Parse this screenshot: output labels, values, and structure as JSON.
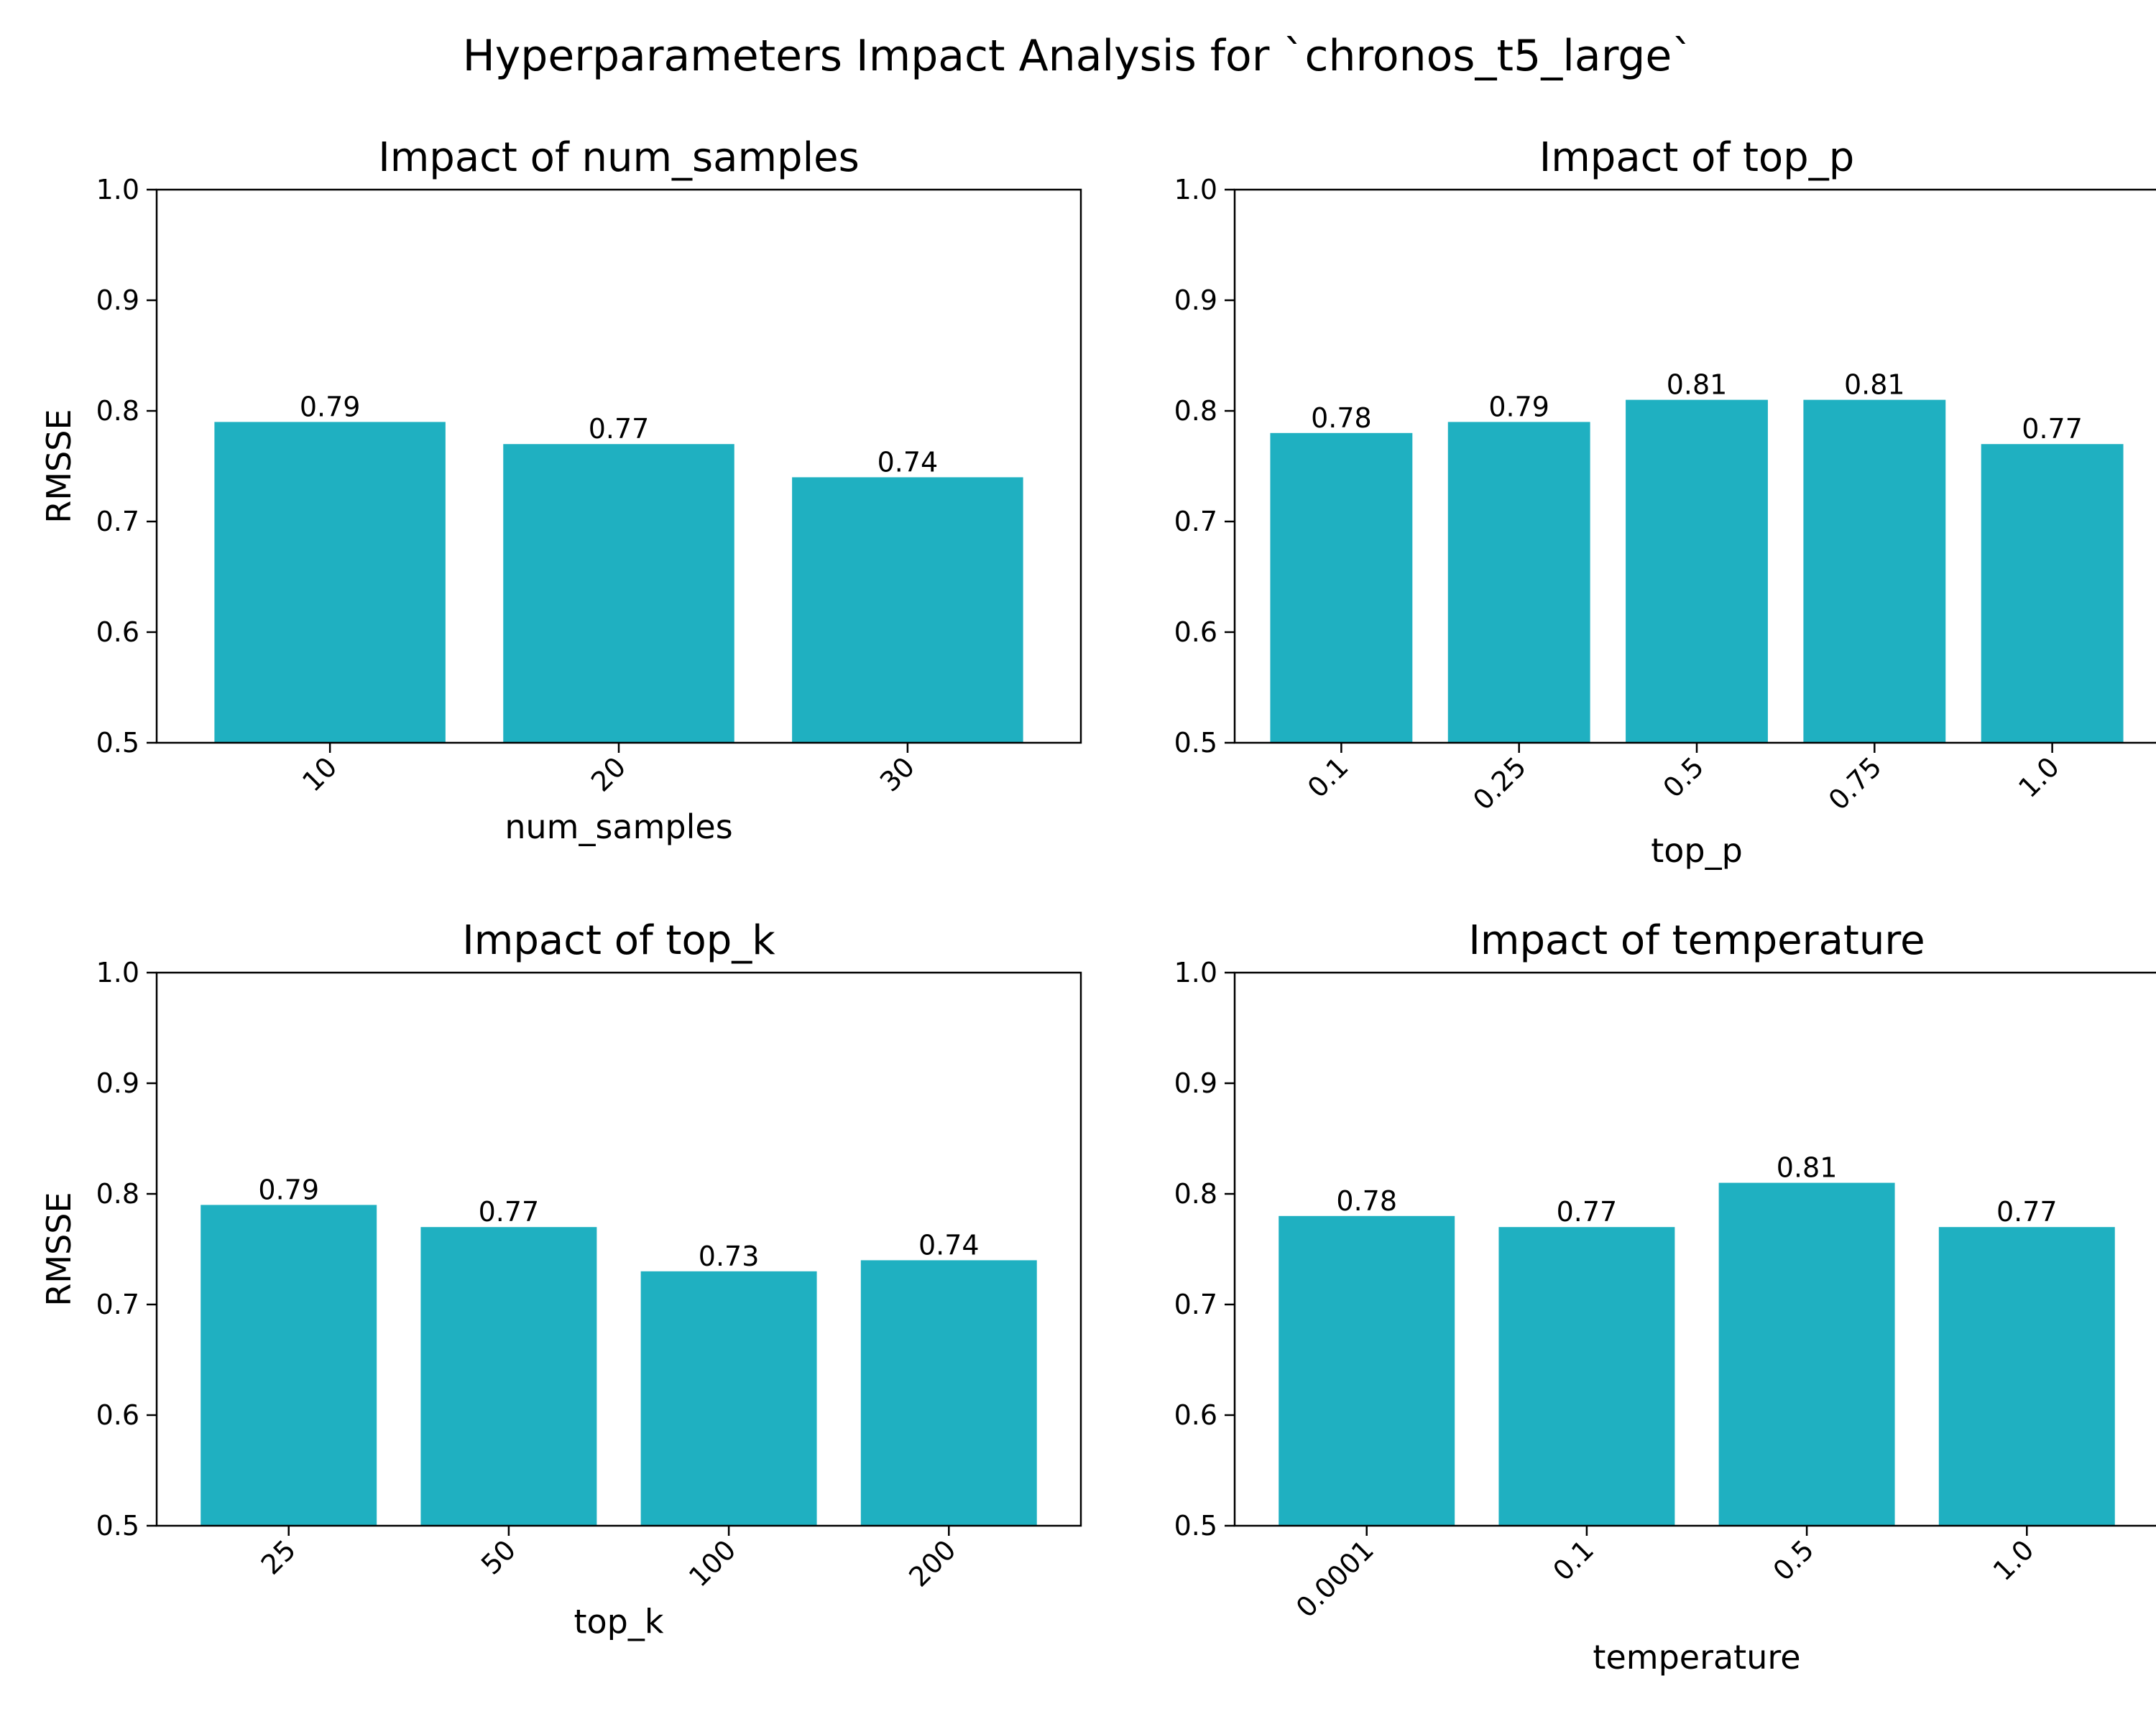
{
  "figure": {
    "title": "Hyperparameters Impact Analysis for `chronos_t5_large`",
    "bar_color": "#1fb0c1"
  },
  "chart_data": [
    {
      "type": "bar",
      "title": "Impact of num_samples",
      "xlabel": "num_samples",
      "ylabel": "RMSSE",
      "categories": [
        "10",
        "20",
        "30"
      ],
      "values": [
        0.79,
        0.77,
        0.74
      ],
      "value_labels": [
        "0.79",
        "0.77",
        "0.74"
      ],
      "ylim": [
        0.5,
        1.0
      ],
      "yticks": [
        "0.5",
        "0.6",
        "0.7",
        "0.8",
        "0.9",
        "1.0"
      ],
      "grid": false,
      "legend": "none"
    },
    {
      "type": "bar",
      "title": "Impact of top_p",
      "xlabel": "top_p",
      "ylabel": "",
      "categories": [
        "0.1",
        "0.25",
        "0.5",
        "0.75",
        "1.0"
      ],
      "values": [
        0.78,
        0.79,
        0.81,
        0.81,
        0.77
      ],
      "value_labels": [
        "0.78",
        "0.79",
        "0.81",
        "0.81",
        "0.77"
      ],
      "ylim": [
        0.5,
        1.0
      ],
      "yticks": [
        "0.5",
        "0.6",
        "0.7",
        "0.8",
        "0.9",
        "1.0"
      ],
      "grid": false,
      "legend": "none"
    },
    {
      "type": "bar",
      "title": "Impact of top_k",
      "xlabel": "top_k",
      "ylabel": "RMSSE",
      "categories": [
        "25",
        "50",
        "100",
        "200"
      ],
      "values": [
        0.79,
        0.77,
        0.73,
        0.74
      ],
      "value_labels": [
        "0.79",
        "0.77",
        "0.73",
        "0.74"
      ],
      "ylim": [
        0.5,
        1.0
      ],
      "yticks": [
        "0.5",
        "0.6",
        "0.7",
        "0.8",
        "0.9",
        "1.0"
      ],
      "grid": false,
      "legend": "none"
    },
    {
      "type": "bar",
      "title": "Impact of temperature",
      "xlabel": "temperature",
      "ylabel": "",
      "categories": [
        "0.0001",
        "0.1",
        "0.5",
        "1.0"
      ],
      "values": [
        0.78,
        0.77,
        0.81,
        0.77
      ],
      "value_labels": [
        "0.78",
        "0.77",
        "0.81",
        "0.77"
      ],
      "ylim": [
        0.5,
        1.0
      ],
      "yticks": [
        "0.5",
        "0.6",
        "0.7",
        "0.8",
        "0.9",
        "1.0"
      ],
      "grid": false,
      "legend": "none"
    }
  ]
}
